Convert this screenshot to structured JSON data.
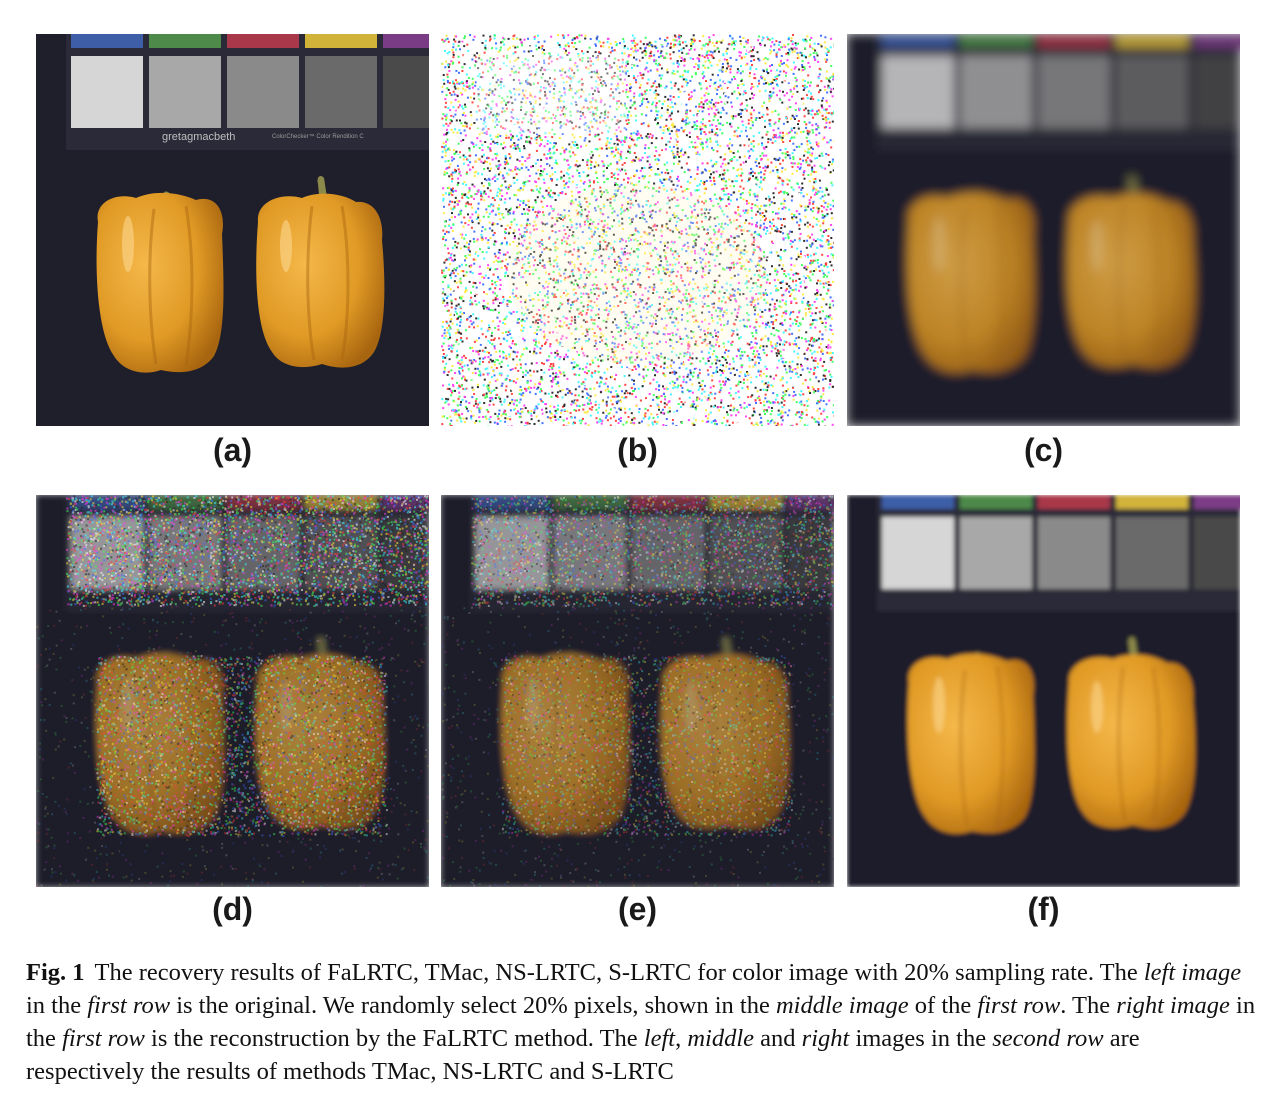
{
  "figure": {
    "panels": [
      {
        "id": "a",
        "label": "(a)",
        "style": "original",
        "chart_text": "gretagmacbeth",
        "chart_text_small": "ColorChecker™ Color Rendition C"
      },
      {
        "id": "b",
        "label": "(b)",
        "style": "sampled",
        "chart_text": "",
        "chart_text_small": ""
      },
      {
        "id": "c",
        "label": "(c)",
        "style": "blur",
        "chart_text": "",
        "chart_text_small": ""
      },
      {
        "id": "d",
        "label": "(d)",
        "style": "noisy",
        "chart_text": "",
        "chart_text_small": ""
      },
      {
        "id": "e",
        "label": "(e)",
        "style": "noisy-dim",
        "chart_text": "",
        "chart_text_small": ""
      },
      {
        "id": "f",
        "label": "(f)",
        "style": "smooth",
        "chart_text": "",
        "chart_text_small": ""
      }
    ],
    "colors": {
      "background": "#1f1f2c",
      "pepper": "#e09a25",
      "pepper_dark": "#a8650f",
      "stem": "#8c8a4a",
      "swatch_top": [
        "#3e5fa8",
        "#4e8a4a",
        "#a9384a",
        "#d2b33a",
        "#7b3c86"
      ],
      "swatch_gray": [
        "#d6d6d6",
        "#a8a8a8",
        "#8a8a8a",
        "#6a6a6a"
      ]
    },
    "caption": {
      "fig_no": "Fig. 1",
      "s1": "The recovery results of FaLRTC, TMac, NS-LRTC, S-LRTC for color image with 20% sampling rate. The ",
      "i1": "left image",
      "s2": " in the ",
      "i2": "first row",
      "s3": " is the original. We randomly select 20% pixels, shown in the ",
      "i3": "middle image",
      "s4": " of the ",
      "i4": "first row",
      "s5": ". The ",
      "i5": "right image",
      "s6": " in the ",
      "i6": "first row",
      "s7": " is the reconstruction by the FaLRTC method. The ",
      "i7": "left",
      "s8": ", ",
      "i8": "middle",
      "s9": " and ",
      "i9": "right",
      "s10": " images in the ",
      "i10": "second row",
      "s11": " are respectively the results of methods TMac, NS-LRTC and S-LRTC"
    }
  }
}
